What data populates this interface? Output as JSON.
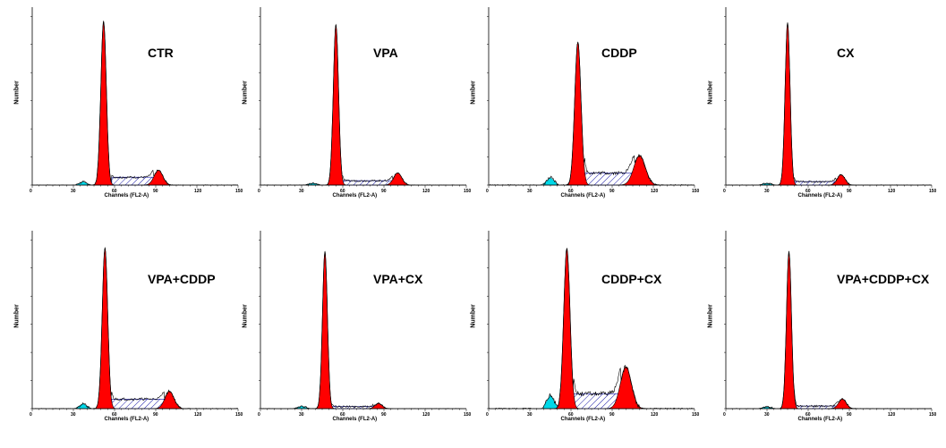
{
  "chart_data": [
    {
      "type": "area",
      "title": "CTR",
      "xlabel": "Channels (FL2-A)",
      "ylabel": "Number",
      "xlim": [
        0,
        150
      ],
      "xticks": [
        "0",
        "30",
        "60",
        "90",
        "120",
        "150"
      ],
      "g1": {
        "x": 52,
        "height": 0.94,
        "width": 2.0
      },
      "g2": {
        "x": 92,
        "height": 0.085,
        "width": 3.2
      },
      "s_phase": {
        "level": 0.045,
        "from": 58,
        "to": 88
      },
      "debris": {
        "x": 37,
        "height": 0.02
      },
      "noise": 0.012
    },
    {
      "type": "area",
      "title": "VPA",
      "xlabel": "Channels (FL2-A)",
      "ylabel": "Number",
      "xlim": [
        0,
        150
      ],
      "xticks": [
        "0",
        "30",
        "60",
        "90",
        "120",
        "150"
      ],
      "g1": {
        "x": 55,
        "height": 0.92,
        "width": 1.9
      },
      "g2": {
        "x": 100,
        "height": 0.07,
        "width": 3.0
      },
      "s_phase": {
        "level": 0.025,
        "from": 60,
        "to": 96
      },
      "debris": {
        "x": 38,
        "height": 0.012
      },
      "noise": 0.01
    },
    {
      "type": "area",
      "title": "CDDP",
      "xlabel": "Channels (FL2-A)",
      "ylabel": "Number",
      "xlim": [
        0,
        150
      ],
      "xticks": [
        "0",
        "30",
        "60",
        "90",
        "120",
        "150"
      ],
      "g1": {
        "x": 65,
        "height": 0.82,
        "width": 2.3
      },
      "g2": {
        "x": 110,
        "height": 0.17,
        "width": 4.2
      },
      "s_phase": {
        "level": 0.07,
        "from": 70,
        "to": 106
      },
      "debris": {
        "x": 45,
        "height": 0.045
      },
      "noise": 0.02
    },
    {
      "type": "area",
      "title": "CX",
      "xlabel": "Channels (FL2-A)",
      "ylabel": "Number",
      "xlim": [
        0,
        150
      ],
      "xticks": [
        "0",
        "30",
        "60",
        "90",
        "120",
        "150"
      ],
      "g1": {
        "x": 45,
        "height": 0.93,
        "width": 1.8
      },
      "g2": {
        "x": 84,
        "height": 0.06,
        "width": 2.8
      },
      "s_phase": {
        "level": 0.02,
        "from": 50,
        "to": 80
      },
      "debris": {
        "x": 30,
        "height": 0.012
      },
      "noise": 0.01
    },
    {
      "type": "area",
      "title": "VPA+CDDP",
      "xlabel": "Channels (FL2-A)",
      "ylabel": "Number",
      "xlim": [
        0,
        150
      ],
      "xticks": [
        "0",
        "30",
        "60",
        "90",
        "120",
        "150"
      ],
      "g1": {
        "x": 53,
        "height": 0.92,
        "width": 2.0
      },
      "g2": {
        "x": 100,
        "height": 0.1,
        "width": 3.3
      },
      "s_phase": {
        "level": 0.055,
        "from": 58,
        "to": 96
      },
      "debris": {
        "x": 37,
        "height": 0.03
      },
      "noise": 0.015
    },
    {
      "type": "area",
      "title": "VPA+CX",
      "xlabel": "Channels (FL2-A)",
      "ylabel": "Number",
      "xlim": [
        0,
        150
      ],
      "xticks": [
        "0",
        "30",
        "60",
        "90",
        "120",
        "150"
      ],
      "g1": {
        "x": 47,
        "height": 0.9,
        "width": 1.8
      },
      "g2": {
        "x": 86,
        "height": 0.03,
        "width": 2.6
      },
      "s_phase": {
        "level": 0.012,
        "from": 52,
        "to": 82
      },
      "debris": {
        "x": 30,
        "height": 0.015
      },
      "noise": 0.01
    },
    {
      "type": "area",
      "title": "CDDP+CX",
      "xlabel": "Channels (FL2-A)",
      "ylabel": "Number",
      "xlim": [
        0,
        150
      ],
      "xticks": [
        "0",
        "30",
        "60",
        "90",
        "120",
        "150"
      ],
      "g1": {
        "x": 57,
        "height": 0.92,
        "width": 2.3
      },
      "g2": {
        "x": 100,
        "height": 0.24,
        "width": 4.0
      },
      "s_phase": {
        "level": 0.085,
        "from": 62,
        "to": 96
      },
      "debris": {
        "x": 45,
        "height": 0.08
      },
      "noise": 0.025
    },
    {
      "type": "area",
      "title": "VPA+CDDP+CX",
      "xlabel": "Channels (FL2-A)",
      "ylabel": "Number",
      "xlim": [
        0,
        150
      ],
      "xticks": [
        "0",
        "30",
        "60",
        "90",
        "120",
        "150"
      ],
      "g1": {
        "x": 46,
        "height": 0.9,
        "width": 1.8
      },
      "g2": {
        "x": 85,
        "height": 0.055,
        "width": 2.8
      },
      "s_phase": {
        "level": 0.015,
        "from": 50,
        "to": 82
      },
      "debris": {
        "x": 30,
        "height": 0.012
      },
      "noise": 0.01
    }
  ],
  "colors": {
    "g1": "#ff0000",
    "g2": "#ff0000",
    "debris": "#00d8e8",
    "s_phase": "#1a1aa8",
    "outline": "#000000"
  }
}
